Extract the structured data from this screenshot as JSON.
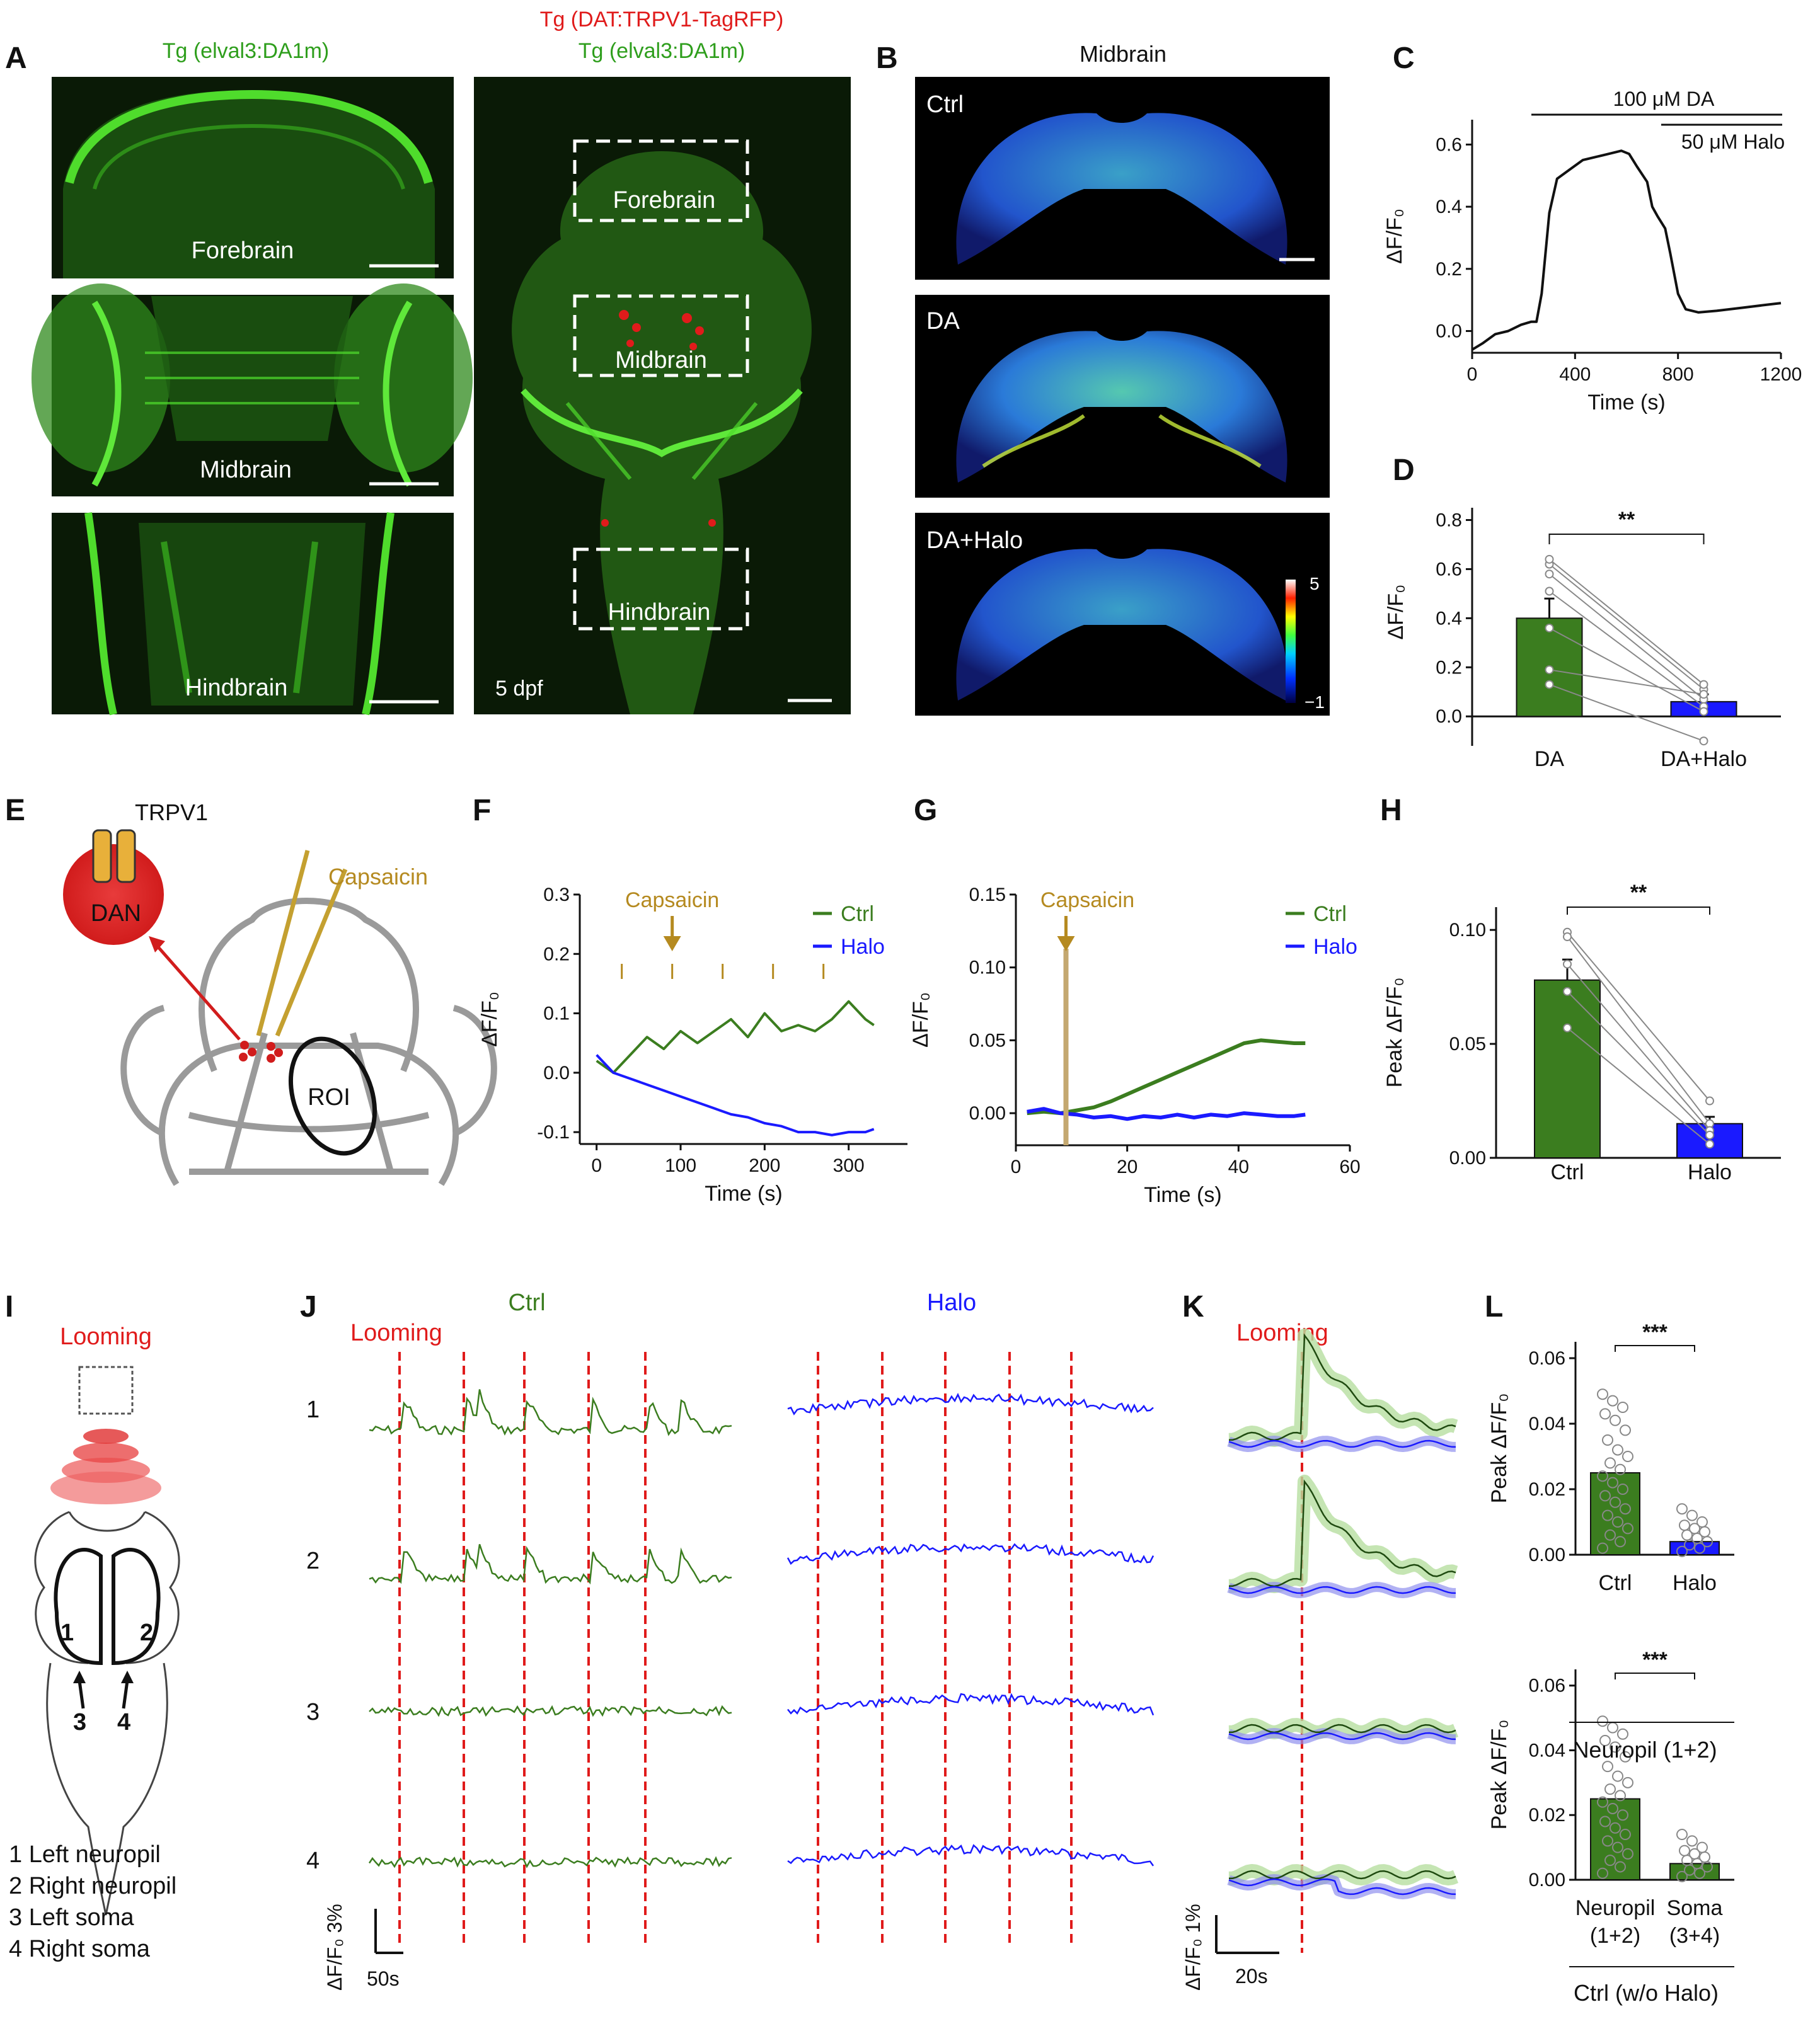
{
  "panels": {
    "A": {
      "letter": "A",
      "left_title": "Tg (elval3:DA1m)",
      "right_title_red": "Tg (DAT:TRPV1-TagRFP)",
      "right_title_green": "Tg (elval3:DA1m)",
      "region_labels": [
        "Forebrain",
        "Midbrain",
        "Hindbrain"
      ],
      "age_label": "5 dpf",
      "colors": {
        "green": "#2e9e1c",
        "red": "#e01b1b"
      }
    },
    "B": {
      "letter": "B",
      "title": "Midbrain",
      "conditions": [
        "Ctrl",
        "DA",
        "DA+Halo"
      ],
      "colorbar": {
        "max_label": "5",
        "min_label": "−1"
      }
    },
    "C": {
      "letter": "C",
      "bar1_label": "100 μM DA",
      "bar2_label": "50 μM Halo"
    },
    "D": {
      "letter": "D",
      "sig": "**"
    },
    "E": {
      "letter": "E",
      "trpv1": "TRPV1",
      "dan": "DAN",
      "capsaicin": "Capsaicin",
      "roi": "ROI"
    },
    "F": {
      "letter": "F",
      "capsaicin": "Capsaicin"
    },
    "G": {
      "letter": "G",
      "capsaicin": "Capsaicin"
    },
    "H": {
      "letter": "H",
      "sig": "**"
    },
    "I": {
      "letter": "I",
      "looming": "Looming",
      "numbers": [
        "1",
        "2",
        "3",
        "4"
      ],
      "legend": [
        "1 Left neuropil",
        "2 Right neuropil",
        "3 Left soma",
        "4 Right soma"
      ]
    },
    "J": {
      "letter": "J",
      "looming": "Looming",
      "ctrl": "Ctrl",
      "halo": "Halo",
      "rows": [
        "1",
        "2",
        "3",
        "4"
      ],
      "scale_y": "ΔF/F₀ 3%",
      "scale_x": "50s"
    },
    "K": {
      "letter": "K",
      "looming": "Looming",
      "scale_y": "ΔF/F₀ 1%",
      "scale_x": "20s"
    },
    "L": {
      "letter": "L",
      "sig_top": "***",
      "sig_bottom": "***",
      "group_top": "Neuropil (1+2)",
      "group_bottom": "Ctrl (w/o Halo)"
    }
  },
  "chart_data": [
    {
      "id": "C",
      "type": "line",
      "xlabel": "Time (s)",
      "ylabel": "ΔF/F₀",
      "xlim": [
        0,
        1200
      ],
      "ylim": [
        -0.07,
        0.68
      ],
      "xticks": [
        "0",
        "400",
        "800",
        "1200"
      ],
      "yticks": [
        "0.0",
        "0.2",
        "0.4",
        "0.6"
      ],
      "series": [
        {
          "color": "#111111",
          "x": [
            0,
            40,
            90,
            140,
            190,
            230,
            250,
            270,
            300,
            330,
            380,
            430,
            480,
            530,
            580,
            610,
            640,
            680,
            700,
            720,
            750,
            770,
            800,
            830,
            880,
            950,
            1050,
            1150,
            1200
          ],
          "y": [
            -0.06,
            -0.04,
            -0.01,
            0.0,
            0.02,
            0.03,
            0.03,
            0.12,
            0.38,
            0.49,
            0.52,
            0.55,
            0.56,
            0.57,
            0.58,
            0.57,
            0.53,
            0.48,
            0.4,
            0.37,
            0.33,
            0.25,
            0.12,
            0.07,
            0.06,
            0.065,
            0.075,
            0.085,
            0.09
          ]
        }
      ]
    },
    {
      "id": "D",
      "type": "bar",
      "categories": [
        "DA",
        "DA+Halo"
      ],
      "values": [
        0.4,
        0.06
      ],
      "errors": [
        0.08,
        0.03
      ],
      "colors": [
        "#3b7d1f",
        "#1a1aff"
      ],
      "ylabel": "ΔF/F₀",
      "ylim": [
        -0.12,
        0.85
      ],
      "yticks": [
        "0.0",
        "0.2",
        "0.4",
        "0.6",
        "0.8"
      ],
      "paired": [
        [
          0.62,
          0.11
        ],
        [
          0.64,
          0.13
        ],
        [
          0.58,
          0.07
        ],
        [
          0.51,
          0.04
        ],
        [
          0.36,
          0.02
        ],
        [
          0.19,
          0.09
        ],
        [
          0.13,
          -0.1
        ]
      ]
    },
    {
      "id": "F",
      "type": "line",
      "xlabel": "Time (s)",
      "ylabel": "ΔF/F₀",
      "xlim": [
        -20,
        370
      ],
      "ylim": [
        -0.12,
        0.3
      ],
      "xticks": [
        "0",
        "100",
        "200",
        "300"
      ],
      "yticks": [
        "-0.1",
        "0.0",
        "0.1",
        "0.2",
        "0.3"
      ],
      "stim_times": [
        30,
        90,
        150,
        210,
        270
      ],
      "series": [
        {
          "name": "Ctrl",
          "color": "#3b7d1f",
          "x": [
            0,
            20,
            40,
            60,
            80,
            100,
            120,
            140,
            160,
            180,
            200,
            220,
            240,
            260,
            280,
            300,
            320,
            330
          ],
          "y": [
            0.02,
            0.0,
            0.03,
            0.06,
            0.04,
            0.07,
            0.05,
            0.07,
            0.09,
            0.06,
            0.1,
            0.07,
            0.08,
            0.07,
            0.09,
            0.12,
            0.09,
            0.08
          ]
        },
        {
          "name": "Halo",
          "color": "#1a1aff",
          "x": [
            0,
            20,
            40,
            60,
            80,
            100,
            120,
            140,
            160,
            180,
            200,
            220,
            240,
            260,
            280,
            300,
            320,
            330
          ],
          "y": [
            0.03,
            0.0,
            -0.01,
            -0.02,
            -0.03,
            -0.04,
            -0.05,
            -0.06,
            -0.07,
            -0.075,
            -0.085,
            -0.09,
            -0.1,
            -0.1,
            -0.105,
            -0.1,
            -0.1,
            -0.095
          ]
        }
      ]
    },
    {
      "id": "G",
      "type": "line",
      "xlabel": "Time (s)",
      "ylabel": "ΔF/F₀",
      "xlim": [
        0,
        60
      ],
      "ylim": [
        -0.022,
        0.15
      ],
      "xticks": [
        "0",
        "20",
        "40",
        "60"
      ],
      "yticks": [
        "0.00",
        "0.05",
        "0.10",
        "0.15"
      ],
      "stim_time": 9,
      "series": [
        {
          "name": "Ctrl",
          "color": "#3b7d1f",
          "x": [
            2,
            5,
            8,
            11,
            14,
            17,
            20,
            23,
            26,
            29,
            32,
            35,
            38,
            41,
            44,
            47,
            50,
            52
          ],
          "y": [
            0.0,
            0.001,
            0.0,
            0.002,
            0.004,
            0.008,
            0.013,
            0.018,
            0.023,
            0.028,
            0.033,
            0.038,
            0.043,
            0.048,
            0.05,
            0.049,
            0.048,
            0.048
          ]
        },
        {
          "name": "Halo",
          "color": "#1a1aff",
          "x": [
            2,
            5,
            8,
            11,
            14,
            17,
            20,
            23,
            26,
            29,
            32,
            35,
            38,
            41,
            44,
            47,
            50,
            52
          ],
          "y": [
            0.001,
            0.003,
            0.0,
            -0.001,
            -0.003,
            -0.002,
            -0.004,
            -0.002,
            -0.003,
            -0.001,
            -0.003,
            -0.001,
            -0.002,
            0.0,
            -0.001,
            -0.002,
            -0.002,
            -0.001
          ]
        }
      ]
    },
    {
      "id": "H",
      "type": "bar",
      "categories": [
        "Ctrl",
        "Halo"
      ],
      "values": [
        0.078,
        0.015
      ],
      "errors": [
        0.009,
        0.003
      ],
      "colors": [
        "#3b7d1f",
        "#1a1aff"
      ],
      "ylabel": "Peak ΔF/F₀",
      "ylim": [
        0,
        0.11
      ],
      "yticks": [
        "0.00",
        "0.05",
        "0.10"
      ],
      "paired": [
        [
          0.099,
          0.025
        ],
        [
          0.097,
          0.015
        ],
        [
          0.085,
          0.012
        ],
        [
          0.073,
          0.01
        ],
        [
          0.057,
          0.006
        ]
      ]
    },
    {
      "id": "L-top",
      "type": "bar",
      "categories": [
        "Ctrl",
        "Halo"
      ],
      "values": [
        0.025,
        0.004
      ],
      "colors": [
        "#3b7d1f",
        "#1a1aff"
      ],
      "ylabel": "Peak ΔF/F₀",
      "ylim": [
        0,
        0.065
      ],
      "yticks": [
        "0.00",
        "0.02",
        "0.04",
        "0.06"
      ]
    },
    {
      "id": "L-bottom",
      "type": "bar",
      "categories": [
        "Neuropil\n(1+2)",
        "Soma\n(3+4)"
      ],
      "values": [
        0.025,
        0.005
      ],
      "colors": [
        "#3b7d1f",
        "#3b7d1f"
      ],
      "ylabel": "Peak ΔF/F₀",
      "ylim": [
        0,
        0.065
      ],
      "yticks": [
        "0.00",
        "0.02",
        "0.04",
        "0.06"
      ]
    }
  ]
}
